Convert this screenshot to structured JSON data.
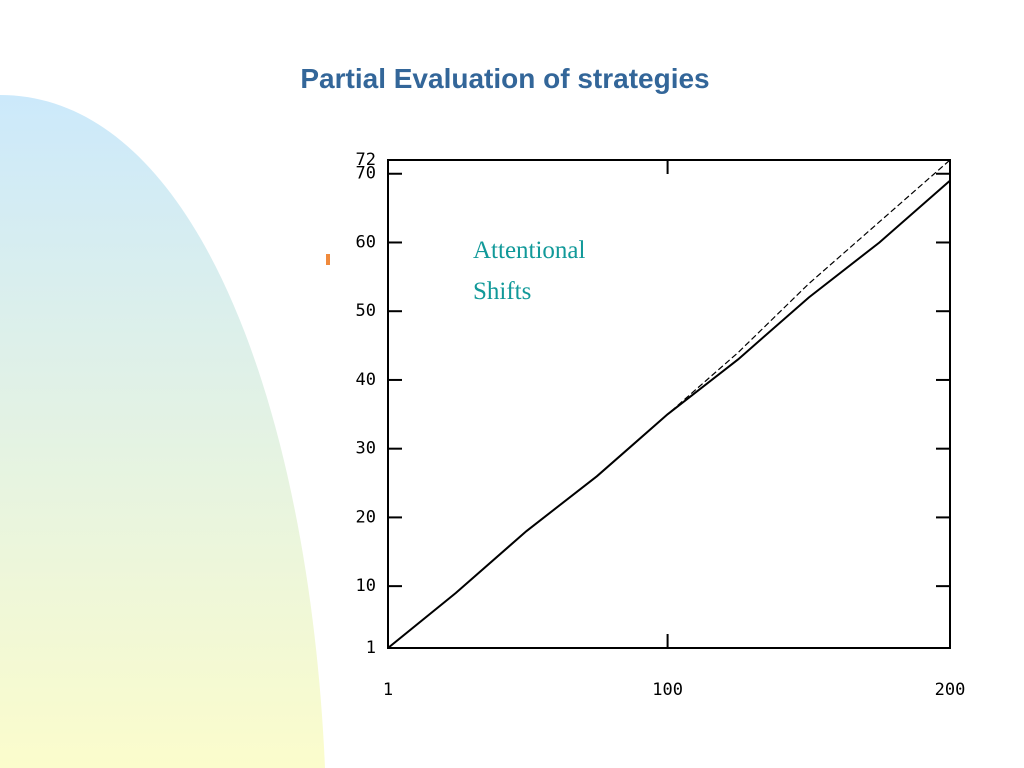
{
  "chart_data": {
    "type": "line",
    "title": "Partial Evaluation of strategies",
    "annotation": [
      "Attentional",
      "Shifts"
    ],
    "x": [
      1,
      25,
      50,
      75,
      100,
      125,
      150,
      175,
      200
    ],
    "series": [
      {
        "color": "#000000",
        "values": [
          1,
          9,
          18,
          26,
          35,
          43,
          52,
          60,
          69
        ]
      },
      {
        "color": "#000000",
        "values": [
          1,
          9,
          18,
          26,
          35,
          44,
          54,
          63,
          72
        ]
      }
    ],
    "xlim": [
      1,
      200
    ],
    "xticks": [
      1,
      100,
      200
    ],
    "ylim": [
      1,
      72
    ],
    "yticks": [
      1,
      10,
      20,
      30,
      40,
      50,
      60,
      70,
      72
    ]
  }
}
